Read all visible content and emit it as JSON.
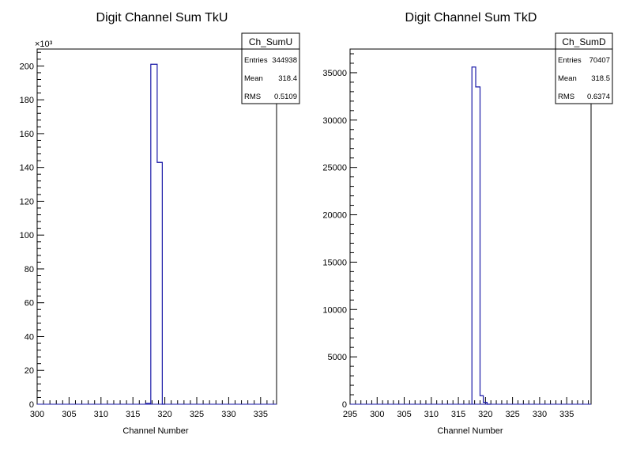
{
  "chart_data": [
    {
      "type": "histogram",
      "title": "Digit Channel Sum TkU",
      "xlabel": "Channel Number",
      "ylabel": "",
      "xlim": [
        300,
        337.5
      ],
      "ylim": [
        0,
        210
      ],
      "y_multiplier_label": "×10³",
      "x_ticks": [
        "300",
        "305",
        "310",
        "315",
        "320",
        "325",
        "330",
        "335"
      ],
      "y_ticks": [
        "0",
        "20",
        "40",
        "60",
        "80",
        "100",
        "120",
        "140",
        "160",
        "180",
        "200"
      ],
      "bins": [
        {
          "x0": 317.0,
          "x1": 317.8,
          "value": 0.5
        },
        {
          "x0": 317.8,
          "x1": 318.8,
          "value": 201
        },
        {
          "x0": 318.8,
          "x1": 319.6,
          "value": 143
        },
        {
          "x0": 319.6,
          "x1": 320.0,
          "value": 0
        }
      ],
      "line_color": "#1a1aa8",
      "stats": {
        "name": "Ch_SumU",
        "rows": [
          {
            "label": "Entries",
            "value": "344938"
          },
          {
            "label": "Mean",
            "value": "318.4"
          },
          {
            "label": "RMS",
            "value": "0.5109"
          }
        ]
      }
    },
    {
      "type": "histogram",
      "title": "Digit Channel Sum TkD",
      "xlabel": "Channel Number",
      "ylabel": "",
      "xlim": [
        295,
        339.5
      ],
      "ylim": [
        0,
        37500
      ],
      "x_ticks": [
        "295",
        "300",
        "305",
        "310",
        "315",
        "320",
        "325",
        "330",
        "335"
      ],
      "y_ticks": [
        "0",
        "5000",
        "10000",
        "15000",
        "20000",
        "25000",
        "30000",
        "35000"
      ],
      "bins": [
        {
          "x0": 317.5,
          "x1": 318.2,
          "value": 35600
        },
        {
          "x0": 318.2,
          "x1": 319.0,
          "value": 33500
        },
        {
          "x0": 319.0,
          "x1": 319.6,
          "value": 900
        },
        {
          "x0": 319.6,
          "x1": 320.3,
          "value": 200
        },
        {
          "x0": 320.3,
          "x1": 321.0,
          "value": 0
        }
      ],
      "line_color": "#1a1aa8",
      "stats": {
        "name": "Ch_SumD",
        "rows": [
          {
            "label": "Entries",
            "value": "70407"
          },
          {
            "label": "Mean",
            "value": "318.5"
          },
          {
            "label": "RMS",
            "value": "0.6374"
          }
        ]
      }
    }
  ]
}
